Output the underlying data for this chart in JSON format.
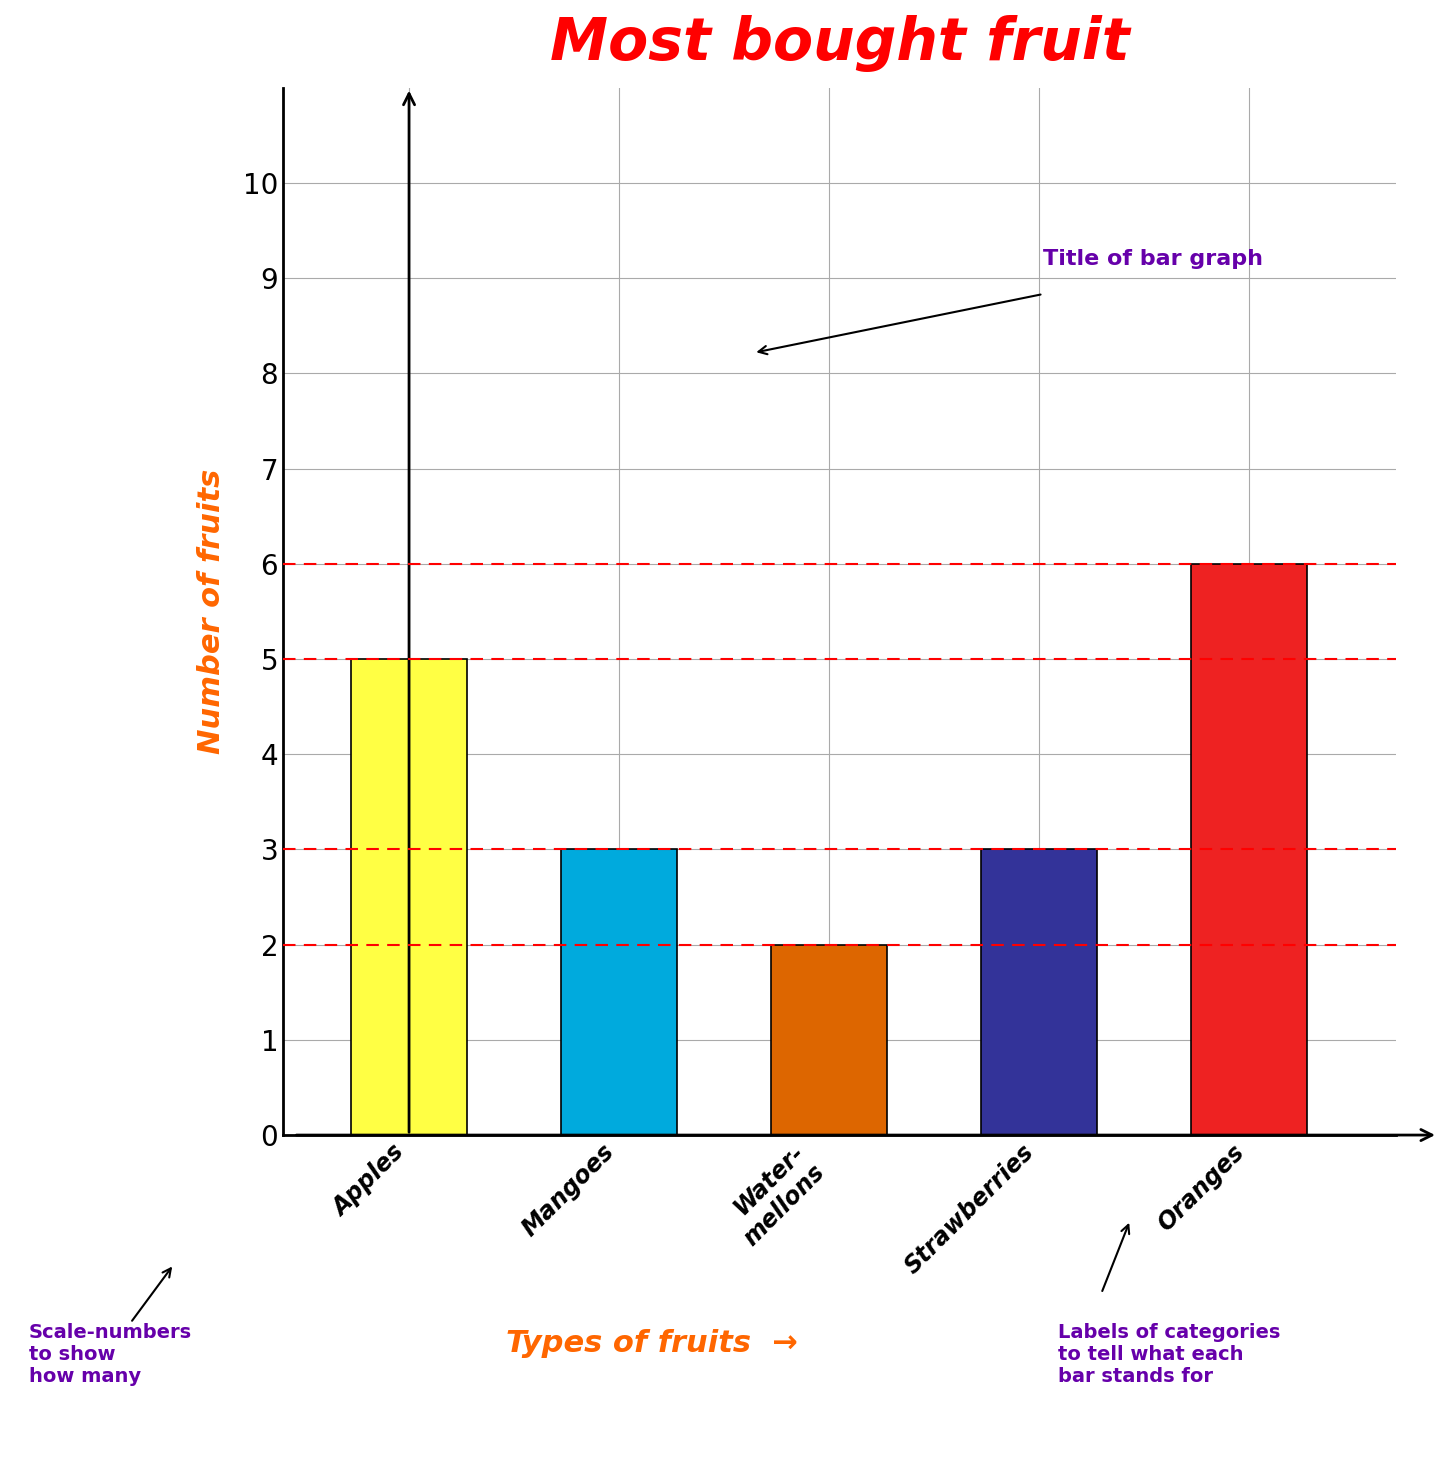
{
  "title": "Most bought fruit",
  "title_color": "#FF0000",
  "title_fontsize": 42,
  "categories": [
    "Apples",
    "Mangoes",
    "Water-\nmellons",
    "Strawberries",
    "Oranges"
  ],
  "values": [
    5,
    3,
    2,
    3,
    6
  ],
  "bar_colors": [
    "#FFFF44",
    "#00AADD",
    "#DD6600",
    "#333399",
    "#EE2222"
  ],
  "ylabel": "Number of fruits",
  "ylabel_color": "#FF6600",
  "ylabel_fontsize": 22,
  "xlabel": "Types of fruits",
  "xlabel_color": "#FF6600",
  "xlabel_fontsize": 22,
  "ylim": [
    0,
    11
  ],
  "yticks": [
    0,
    1,
    2,
    3,
    4,
    5,
    6,
    7,
    8,
    9,
    10
  ],
  "grid_color": "#AAAAAA",
  "dashed_lines": [
    2,
    3,
    5,
    6
  ],
  "dashed_color": "#FF0000",
  "annotation_title_text": "Title of bar graph",
  "annotation_title_color": "#6600AA",
  "annotation_scalenumbers_text": "Scale-numbers\nto show\nhow many",
  "annotation_scalenumbers_color": "#6600AA",
  "annotation_labels_text": "Labels of categories\nto tell what each\nbar stands for",
  "annotation_labels_color": "#6600AA",
  "background_color": "#FFFFFF"
}
